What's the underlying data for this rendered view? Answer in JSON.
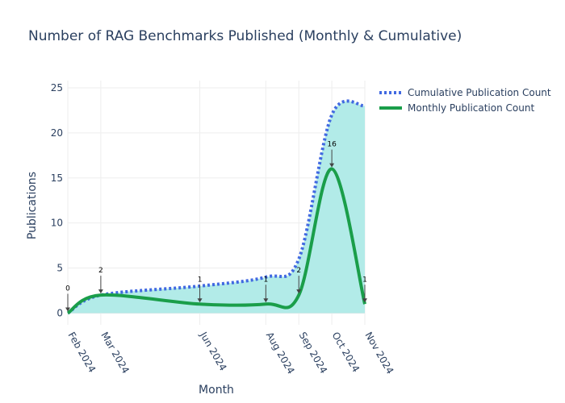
{
  "chart_data": {
    "type": "line",
    "title": "Number of RAG Benchmarks Published (Monthly & Cumulative)",
    "xlabel": "Month",
    "ylabel": "Publications",
    "ylim": [
      -1.3,
      25.8
    ],
    "yticks": [
      0,
      5,
      10,
      15,
      20,
      25
    ],
    "x": [
      "2024-02",
      "2024-03",
      "2024-06",
      "2024-08",
      "2024-09",
      "2024-10",
      "2024-11"
    ],
    "x_tick_labels": [
      "Feb 2024",
      "Mar 2024",
      "Jun 2024",
      "Aug 2024",
      "Sep 2024",
      "Oct 2024",
      "Nov 2024"
    ],
    "series": [
      {
        "name": "Cumulative Publication Count",
        "values": [
          0,
          2,
          3,
          4,
          6,
          22,
          23
        ],
        "color": "#4169e1",
        "dash": "dot",
        "fill": "#b2ebe8"
      },
      {
        "name": "Monthly Publication Count",
        "values": [
          0,
          2,
          1,
          1,
          2,
          16,
          1
        ],
        "color": "#1a9e4a",
        "dash": "solid"
      }
    ],
    "annotations": [
      {
        "x": "2024-02",
        "y": 0,
        "text": "0"
      },
      {
        "x": "2024-03",
        "y": 2,
        "text": "2"
      },
      {
        "x": "2024-06",
        "y": 1,
        "text": "1"
      },
      {
        "x": "2024-08",
        "y": 1,
        "text": "1"
      },
      {
        "x": "2024-09",
        "y": 2,
        "text": "2"
      },
      {
        "x": "2024-10",
        "y": 16,
        "text": "16"
      },
      {
        "x": "2024-11",
        "y": 1,
        "text": "1"
      }
    ],
    "legend": "top-right",
    "grid": true
  }
}
